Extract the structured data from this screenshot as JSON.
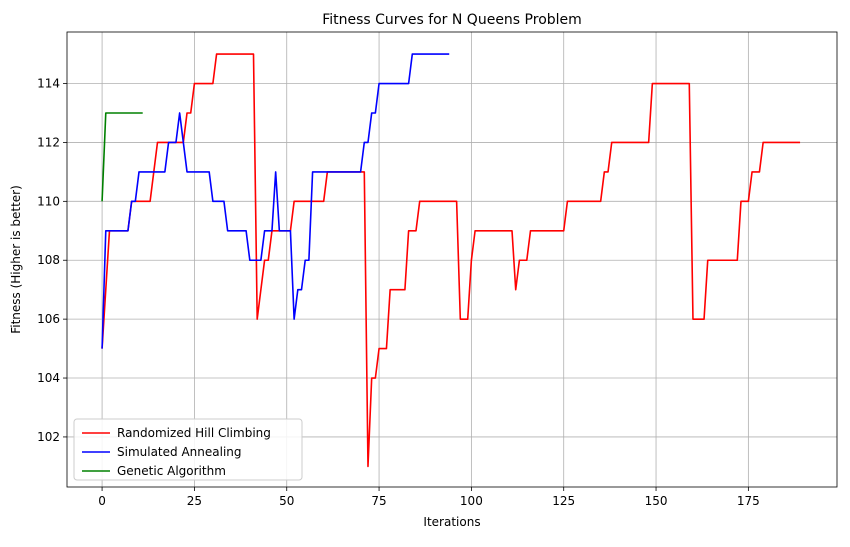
{
  "chart_data": {
    "type": "line",
    "title": "Fitness Curves for N Queens Problem",
    "xlabel": "Iterations",
    "ylabel": "Fitness (Higher is better)",
    "xlim": [
      -9.5,
      199
    ],
    "ylim": [
      100.3,
      115.75
    ],
    "xticks": [
      0,
      25,
      50,
      75,
      100,
      125,
      150,
      175
    ],
    "yticks": [
      102,
      104,
      106,
      108,
      110,
      112,
      114
    ],
    "grid": true,
    "legend_position": "lower left",
    "series": [
      {
        "name": "Randomized Hill Climbing",
        "color": "#ff0000",
        "x": [
          0,
          2,
          7,
          8,
          13,
          15,
          20,
          22,
          23,
          24,
          25,
          30,
          31,
          41,
          42,
          43,
          44,
          45,
          46,
          51,
          52,
          53,
          60,
          61,
          63,
          70,
          71,
          72,
          73,
          74,
          75,
          76,
          77,
          78,
          79,
          82,
          83,
          85,
          86,
          96,
          97,
          99,
          100,
          101,
          111,
          112,
          113,
          115,
          116,
          125,
          126,
          135,
          136,
          137,
          138,
          148,
          149,
          159,
          160,
          163,
          164,
          172,
          173,
          175,
          176,
          178,
          179,
          189
        ],
        "y": [
          105,
          109,
          109,
          110,
          110,
          112,
          112,
          112,
          113,
          113,
          114,
          114,
          115,
          115,
          106,
          107,
          108,
          108,
          109,
          109,
          110,
          110,
          110,
          111,
          111,
          111,
          111,
          101,
          104,
          104,
          105,
          105,
          105,
          107,
          107,
          107,
          109,
          109,
          110,
          110,
          106,
          106,
          108,
          109,
          109,
          107,
          108,
          108,
          109,
          109,
          110,
          110,
          111,
          111,
          112,
          112,
          114,
          114,
          106,
          106,
          108,
          108,
          110,
          110,
          111,
          111,
          112,
          112
        ]
      },
      {
        "name": "Simulated Annealing",
        "color": "#0000ff",
        "x": [
          0,
          1,
          7,
          8,
          9,
          10,
          17,
          18,
          20,
          21,
          23,
          29,
          30,
          33,
          34,
          39,
          40,
          43,
          44,
          46,
          47,
          48,
          49,
          51,
          52,
          53,
          54,
          55,
          56,
          57,
          58,
          68,
          69,
          70,
          71,
          72,
          73,
          74,
          75,
          83,
          84,
          94
        ],
        "y": [
          105,
          109,
          109,
          110,
          110,
          111,
          111,
          112,
          112,
          113,
          111,
          111,
          110,
          110,
          109,
          109,
          108,
          108,
          109,
          109,
          111,
          109,
          109,
          109,
          106,
          107,
          107,
          108,
          108,
          111,
          111,
          111,
          111,
          111,
          112,
          112,
          113,
          113,
          114,
          114,
          115,
          115
        ]
      },
      {
        "name": "Genetic Algorithm",
        "color": "#008000",
        "x": [
          0,
          1,
          11
        ],
        "y": [
          110,
          113,
          113
        ]
      }
    ]
  }
}
